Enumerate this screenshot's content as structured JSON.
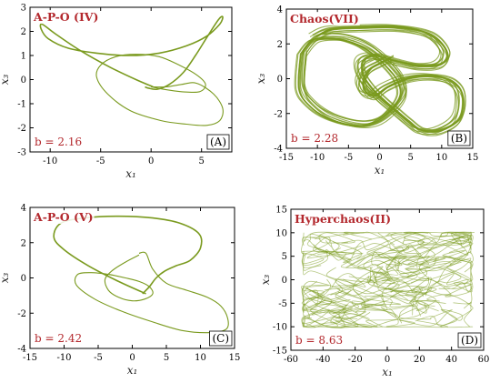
{
  "style": {
    "trajectory_color": "#7a9a1e",
    "label_color": "#b3282d"
  },
  "panels": [
    {
      "id": "A",
      "title": "A-P-O (IV)",
      "param_text": "b = 2.16",
      "letter": "(A)",
      "xlabel": "x₁",
      "ylabel": "x₃",
      "xticks": [
        -10,
        -5,
        0,
        5
      ],
      "yticks": [
        -3,
        -2,
        -1,
        0,
        1,
        2,
        3
      ],
      "xtick_labels": [
        "-10",
        "-5",
        "0",
        "5"
      ],
      "ytick_labels": [
        "-3",
        "-2",
        "-1",
        "0",
        "1",
        "2",
        "3"
      ]
    },
    {
      "id": "B",
      "title": "Chaos(VII)",
      "param_text": "b = 2.28",
      "letter": "(B)",
      "xlabel": "x₁",
      "ylabel": "x₃",
      "xticks": [
        -15,
        -10,
        -5,
        0,
        5,
        10,
        15
      ],
      "yticks": [
        -4,
        -2,
        0,
        2,
        4
      ],
      "xtick_labels": [
        "-15",
        "-10",
        "-5",
        "0",
        "5",
        "10",
        "15"
      ],
      "ytick_labels": [
        "-4",
        "-2",
        "0",
        "2",
        "4"
      ]
    },
    {
      "id": "C",
      "title": "A-P-O (V)",
      "param_text": "b = 2.42",
      "letter": "(C)",
      "xlabel": "x₁",
      "ylabel": "x₃",
      "xticks": [
        -15,
        -10,
        -5,
        0,
        5,
        10,
        15
      ],
      "yticks": [
        -4,
        -2,
        0,
        2,
        4
      ],
      "xtick_labels": [
        "-15",
        "-10",
        "-5",
        "0",
        "5",
        "10",
        "15"
      ],
      "ytick_labels": [
        "-4",
        "-2",
        "0",
        "2",
        "4"
      ]
    },
    {
      "id": "D",
      "title": "Hyperchaos(II)",
      "param_text": "b = 8.63",
      "letter": "(D)",
      "xlabel": "x₁",
      "ylabel": "x₃",
      "xticks": [
        -60,
        -40,
        -20,
        0,
        20,
        40,
        60
      ],
      "yticks": [
        -15,
        -10,
        -5,
        0,
        5,
        10,
        15
      ],
      "xtick_labels": [
        "-60",
        "-40",
        "-20",
        "0",
        "20",
        "40",
        "60"
      ],
      "ytick_labels": [
        "-15",
        "-10",
        "-5",
        "0",
        "5",
        "10",
        "15"
      ]
    }
  ],
  "chart_data": [
    {
      "type": "line",
      "title": "A-P-O (IV)",
      "annotation": "b = 2.16",
      "xlabel": "x1",
      "ylabel": "x3",
      "xlim": [
        -12,
        8
      ],
      "ylim": [
        -3,
        3
      ],
      "grid": false,
      "series": [
        {
          "x": [
            0.2,
            -1.5,
            -4,
            -7,
            -9.5,
            -10.8,
            -10.9,
            -10.2,
            -8.2,
            -5.4,
            -2.2,
            0.8,
            3.5,
            5.5,
            6.8,
            7.1,
            6.7,
            5.6,
            4.4,
            3.2,
            1.8,
            0.6,
            -0.3,
            -0.6
          ],
          "y": [
            -0.3,
            0.0,
            0.5,
            1.2,
            1.9,
            2.3,
            2.1,
            1.7,
            1.3,
            1.1,
            1.0,
            1.1,
            1.4,
            1.8,
            2.3,
            2.6,
            2.5,
            1.8,
            1.0,
            0.3,
            -0.2,
            -0.4,
            -0.35,
            -0.3
          ]
        },
        {
          "x": [
            0.0,
            1.5,
            3.0,
            4.5,
            6.2,
            7.1,
            6.8,
            5.5,
            3.5,
            1.0,
            -2.0,
            -4.3,
            -5.4,
            -5.0,
            -3.5,
            -1.5,
            0.8,
            2.8,
            4.5,
            5.4,
            4.8,
            3.0,
            1.2,
            0.0
          ],
          "y": [
            -0.3,
            -0.3,
            -0.2,
            -0.15,
            -0.6,
            -1.2,
            -1.7,
            -1.9,
            -1.85,
            -1.7,
            -1.3,
            -0.6,
            0.1,
            0.6,
            0.95,
            1.05,
            0.95,
            0.6,
            0.2,
            -0.2,
            -0.5,
            -0.5,
            -0.4,
            -0.3
          ]
        }
      ]
    },
    {
      "type": "line",
      "title": "Chaos(VII)",
      "annotation": "b = 2.28",
      "xlabel": "x1",
      "ylabel": "x3",
      "xlim": [
        -15,
        15
      ],
      "ylim": [
        -4,
        4
      ],
      "grid": false,
      "series": [
        {
          "x": [
            -10.5,
            -8,
            -3,
            3,
            8,
            10.5,
            9.5,
            6,
            2,
            -1,
            -3,
            -3,
            -1.5,
            0.5,
            2.5,
            4.5,
            6.5,
            9.5,
            12.5,
            13,
            11.5,
            8.5,
            4.5,
            1.0,
            -1.0,
            -2.5,
            -3.0,
            -2.0,
            0.0,
            1.5
          ],
          "y": [
            2.4,
            2.8,
            2.9,
            2.9,
            2.5,
            1.5,
            0.8,
            0.7,
            1.0,
            1.3,
            1.0,
            0.2,
            -0.6,
            -1.3,
            -1.9,
            -2.5,
            -3.0,
            -3.0,
            -2.3,
            -1.0,
            -0.2,
            0.1,
            0.0,
            -0.5,
            -1.0,
            -0.8,
            -0.2,
            0.5,
            0.9,
            1.2
          ]
        },
        {
          "x": [
            -12.5,
            -12.8,
            -11,
            -8,
            -4,
            -1,
            1.5,
            3.5,
            3.0,
            1.5,
            -0.5,
            -2.5,
            -4.5,
            -7,
            -10.5,
            -12.5
          ],
          "y": [
            1.5,
            -0.5,
            -1.5,
            -2.2,
            -2.6,
            -2.5,
            -1.9,
            -0.9,
            0.0,
            0.7,
            1.4,
            1.9,
            2.2,
            2.4,
            2.3,
            1.5
          ]
        }
      ]
    },
    {
      "type": "line",
      "title": "A-P-O (V)",
      "annotation": "b = 2.42",
      "xlabel": "x1",
      "ylabel": "x3",
      "xlim": [
        -15,
        15
      ],
      "ylim": [
        -4,
        4
      ],
      "grid": false,
      "series": [
        {
          "x": [
            2.0,
            -2,
            -6.5,
            -10,
            -11.5,
            -10.5,
            -7,
            -2,
            3,
            7,
            9.8,
            10,
            8.5,
            6.5,
            4.8,
            3.5,
            2.5,
            1.5
          ],
          "y": [
            -0.9,
            -0.2,
            0.7,
            1.6,
            2.3,
            3.1,
            3.4,
            3.5,
            3.4,
            3.1,
            2.5,
            1.7,
            1.0,
            0.7,
            0.4,
            0.0,
            -0.5,
            -0.9
          ]
        },
        {
          "x": [
            1.0,
            2.0,
            3.0,
            5.0,
            8.0,
            11.0,
            13.0,
            14.0,
            13.8,
            11.5,
            7.5,
            3.0,
            -1.5,
            -5.5,
            -8.2,
            -8.0,
            -6.0,
            -3.5,
            -1.0,
            1.0,
            2.5,
            3.0,
            1.8,
            0.0,
            -2.0,
            -3.5,
            -4.0,
            -3.0,
            -1.0,
            1.0
          ],
          "y": [
            1.4,
            1.4,
            0.5,
            -0.3,
            -0.7,
            -1.1,
            -1.6,
            -2.3,
            -2.9,
            -3.1,
            -3.0,
            -2.5,
            -1.9,
            -1.2,
            -0.4,
            0.2,
            0.3,
            0.2,
            0.0,
            -0.2,
            -0.5,
            -0.9,
            -1.2,
            -1.3,
            -1.1,
            -0.7,
            -0.1,
            0.4,
            0.9,
            1.3
          ]
        }
      ]
    },
    {
      "type": "scatter",
      "title": "Hyperchaos(II)",
      "annotation": "b = 8.63",
      "xlabel": "x1",
      "ylabel": "x3",
      "xlim": [
        -60,
        60
      ],
      "ylim": [
        -15,
        15
      ],
      "grid": false,
      "region": {
        "x": [
          -52,
          52
        ],
        "y": [
          -10,
          10
        ]
      }
    }
  ]
}
